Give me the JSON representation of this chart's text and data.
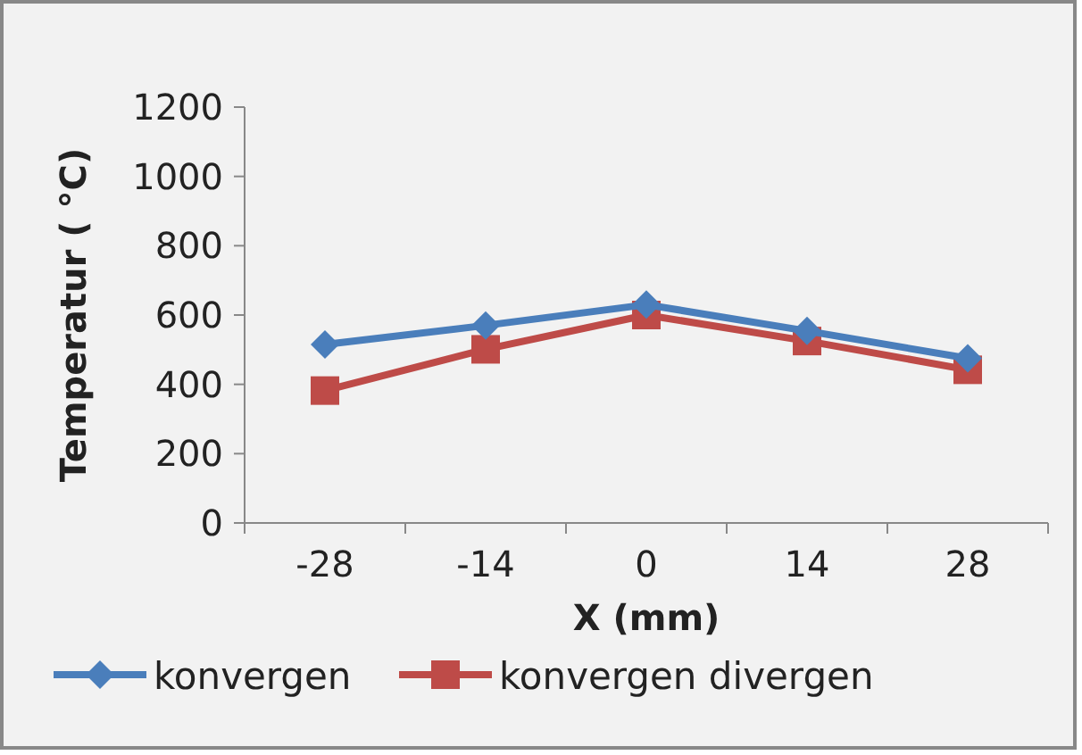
{
  "chart_data": {
    "type": "line",
    "xlabel": "X (mm)",
    "ylabel": "Temperatur ( °C)",
    "categories": [
      "-28",
      "-14",
      "0",
      "14",
      "28"
    ],
    "ylim": [
      0,
      1200
    ],
    "yticks": [
      0,
      200,
      400,
      600,
      800,
      1000,
      1200
    ],
    "legend": "bottom",
    "grid": false,
    "series": [
      {
        "name": "konvergen",
        "color": "#4a7ebb",
        "marker": "diamond",
        "values": [
          515,
          570,
          630,
          554,
          475
        ]
      },
      {
        "name": "konvergen divergen",
        "color": "#be4b48",
        "marker": "square",
        "values": [
          382,
          501,
          600,
          525,
          442
        ]
      }
    ]
  }
}
